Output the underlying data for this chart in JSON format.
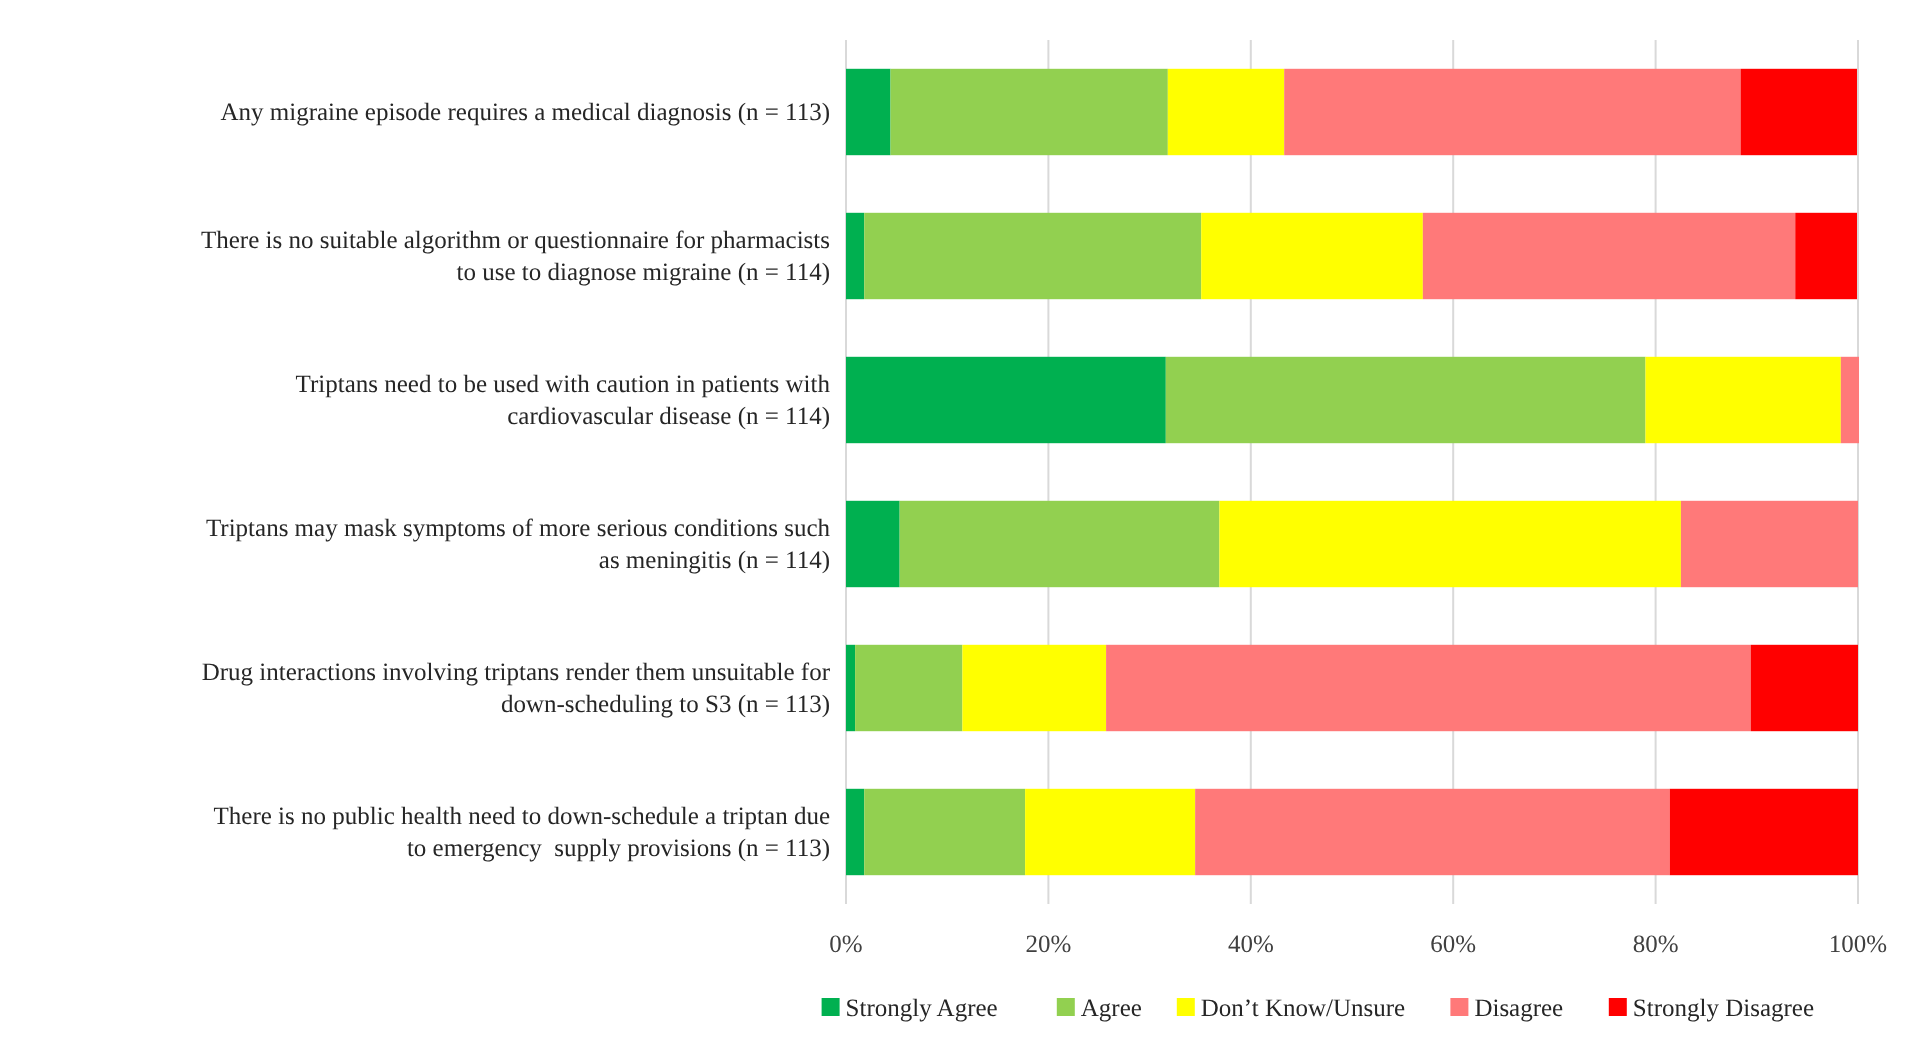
{
  "chart_data": {
    "type": "bar",
    "orientation": "horizontal",
    "stacked": true,
    "categories": [
      "Any migraine episode requires a medical diagnosis (n = 113)",
      "There is no suitable algorithm or questionnaire for pharmacists\nto use to diagnose migraine (n = 114)",
      "Triptans need to be used with caution in patients with\ncardiovascular disease (n = 114)",
      "Triptans may mask symptoms of more serious conditions such\nas meningitis (n = 114)",
      "Drug interactions involving triptans render them unsuitable for\ndown-scheduling to S3 (n = 113)",
      "There is no public health need to down-schedule a triptan due\nto emergency  supply provisions (n = 113)"
    ],
    "series": [
      {
        "name": "Strongly Agree",
        "color": "#00b050",
        "values": [
          4.4,
          1.8,
          31.6,
          5.3,
          0.9,
          1.8
        ]
      },
      {
        "name": "Agree",
        "color": "#92d050",
        "values": [
          27.4,
          33.3,
          47.4,
          31.6,
          10.6,
          15.9
        ]
      },
      {
        "name": "Don’t Know/Unsure",
        "color": "#ffff00",
        "values": [
          11.5,
          21.9,
          19.3,
          45.6,
          14.2,
          16.8
        ]
      },
      {
        "name": "Disagree",
        "color": "#ff7979",
        "values": [
          45.1,
          36.8,
          1.8,
          17.5,
          63.7,
          46.9
        ]
      },
      {
        "name": "Strongly Disagree",
        "color": "#ff0000",
        "values": [
          11.5,
          6.1,
          0,
          0,
          10.6,
          18.6
        ]
      }
    ],
    "xlim": [
      0,
      100
    ],
    "xticks": [
      {
        "value": 0,
        "label": "0%"
      },
      {
        "value": 20,
        "label": "20%"
      },
      {
        "value": 40,
        "label": "40%"
      },
      {
        "value": 60,
        "label": "60%"
      },
      {
        "value": 80,
        "label": "80%"
      },
      {
        "value": 100,
        "label": "100%"
      }
    ],
    "grid": "x",
    "legend": "bottom"
  }
}
